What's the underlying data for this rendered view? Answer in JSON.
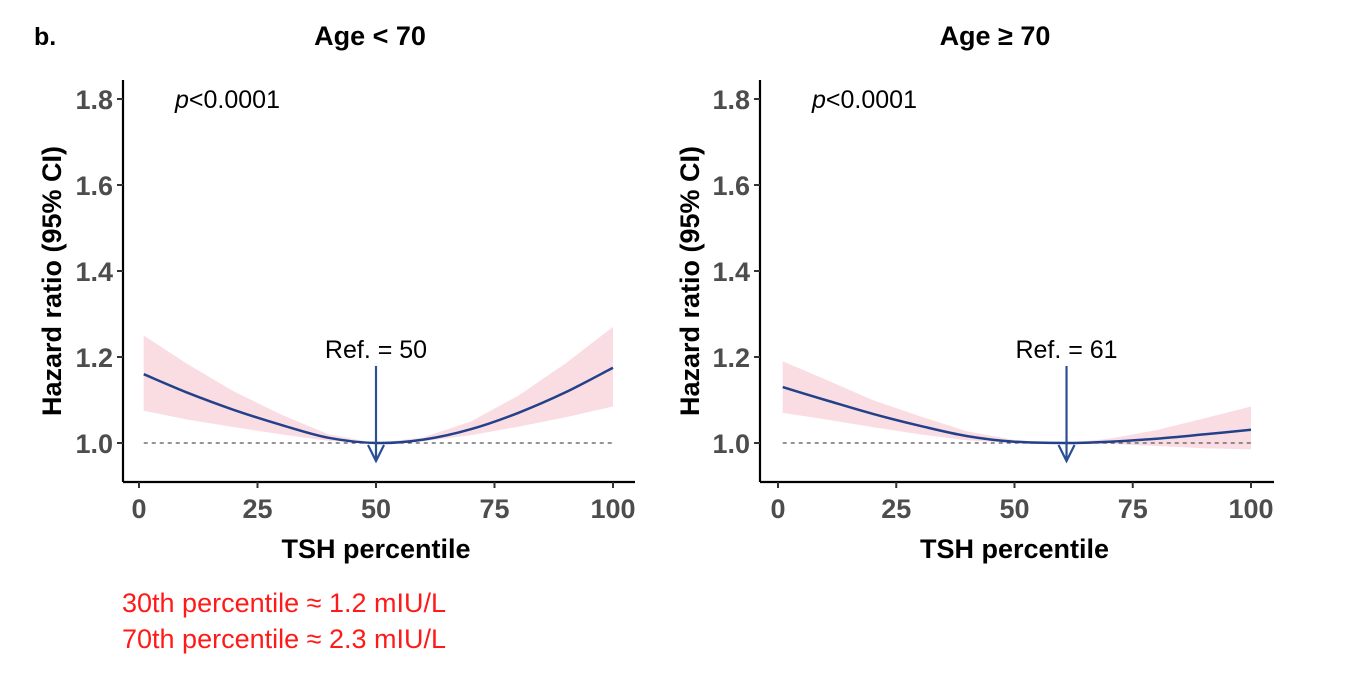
{
  "figure": {
    "panel_label": "b.",
    "notes": [
      "30th percentile ≈ 1.2 mIU/L",
      "70th percentile ≈ 2.3 mIU/L"
    ],
    "colors": {
      "line": "#23418a",
      "ci": "#fadde3",
      "ref_arrow": "#2a4f93",
      "note": "#ff1a1a",
      "tick_label": "#4d4d4d"
    }
  },
  "chart_data": [
    {
      "type": "line",
      "title": "Age < 70",
      "xlabel": "TSH percentile",
      "ylabel": "Hazard ratio (95% CI)",
      "xlim": [
        0,
        100
      ],
      "ylim": [
        0.91,
        1.84
      ],
      "xticks": [
        0,
        25,
        50,
        75,
        100
      ],
      "yticks": [
        1.0,
        1.2,
        1.4,
        1.6,
        1.8
      ],
      "ytick_labels": [
        "1.0",
        "1.2",
        "1.4",
        "1.6",
        "1.8"
      ],
      "annotation_p": {
        "italic": "p",
        "rest": "<0.0001"
      },
      "reference": {
        "label": "Ref. = 50",
        "x": 50
      },
      "hline": 1.0,
      "grid": false,
      "series": [
        {
          "name": "HR",
          "x": [
            1,
            10,
            20,
            30,
            40,
            50,
            60,
            70,
            80,
            90,
            100
          ],
          "y": [
            1.16,
            1.118,
            1.077,
            1.042,
            1.012,
            1.0,
            1.008,
            1.032,
            1.07,
            1.118,
            1.175
          ],
          "lower": [
            1.075,
            1.055,
            1.037,
            1.02,
            1.005,
            1.0,
            1.004,
            1.018,
            1.038,
            1.06,
            1.085
          ],
          "upper": [
            1.25,
            1.185,
            1.12,
            1.066,
            1.02,
            1.0,
            1.013,
            1.05,
            1.11,
            1.185,
            1.27
          ]
        }
      ]
    },
    {
      "type": "line",
      "title": "Age ≥ 70",
      "xlabel": "TSH percentile",
      "ylabel": "Hazard ratio (95% CI)",
      "xlim": [
        0,
        100
      ],
      "ylim": [
        0.91,
        1.84
      ],
      "xticks": [
        0,
        25,
        50,
        75,
        100
      ],
      "yticks": [
        1.0,
        1.2,
        1.4,
        1.6,
        1.8
      ],
      "ytick_labels": [
        "1.0",
        "1.2",
        "1.4",
        "1.6",
        "1.8"
      ],
      "annotation_p": {
        "italic": "p",
        "rest": "<0.0001"
      },
      "reference": {
        "label": "Ref. = 61",
        "x": 61
      },
      "hline": 1.0,
      "grid": false,
      "series": [
        {
          "name": "HR",
          "x": [
            1,
            10,
            20,
            30,
            40,
            50,
            61,
            70,
            80,
            90,
            100
          ],
          "y": [
            1.13,
            1.1,
            1.068,
            1.04,
            1.016,
            1.003,
            1.0,
            1.003,
            1.01,
            1.02,
            1.031
          ],
          "lower": [
            1.07,
            1.055,
            1.037,
            1.02,
            1.006,
            1.0,
            1.0,
            0.998,
            0.993,
            0.988,
            0.985
          ],
          "upper": [
            1.19,
            1.148,
            1.1,
            1.062,
            1.027,
            1.007,
            1.0,
            1.01,
            1.03,
            1.057,
            1.085
          ]
        }
      ]
    }
  ]
}
